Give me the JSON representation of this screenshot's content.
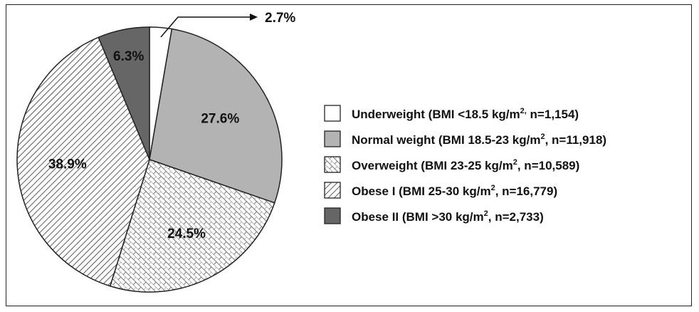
{
  "chart_data": {
    "type": "pie",
    "slices": [
      {
        "label": "2.7%",
        "value": 2.7,
        "fill": "#ffffff",
        "pattern": "none",
        "legend": {
          "pre": "Underweight (BMI <18.5 kg/m",
          "sup": "2,",
          "post": " n=1,154)"
        }
      },
      {
        "label": "27.6%",
        "value": 27.6,
        "fill": "#b3b3b3",
        "pattern": "none",
        "legend": {
          "pre": "Normal weight (BMI 18.5-23 kg/m",
          "sup": "2",
          "post": ", n=11,918)"
        }
      },
      {
        "label": "24.5%",
        "value": 24.5,
        "fill": "#ffffff",
        "pattern": "brick",
        "legend": {
          "pre": "Overweight (BMI 23-25 kg/m",
          "sup": "2",
          "post": ", n=10,589)"
        }
      },
      {
        "label": "38.9%",
        "value": 38.9,
        "fill": "#ffffff",
        "pattern": "diagonal",
        "legend": {
          "pre": "Obese I (BMI 25-30 kg/m",
          "sup": "2",
          "post": ", n=16,779)"
        }
      },
      {
        "label": "6.3%",
        "value": 6.3,
        "fill": "#666666",
        "pattern": "none",
        "legend": {
          "pre": "Obese II (BMI >30 kg/m",
          "sup": "2",
          "post": ", n=2,733)"
        }
      }
    ],
    "start_angle_deg": 0,
    "direction": "clockwise",
    "legend_placement": "right"
  }
}
